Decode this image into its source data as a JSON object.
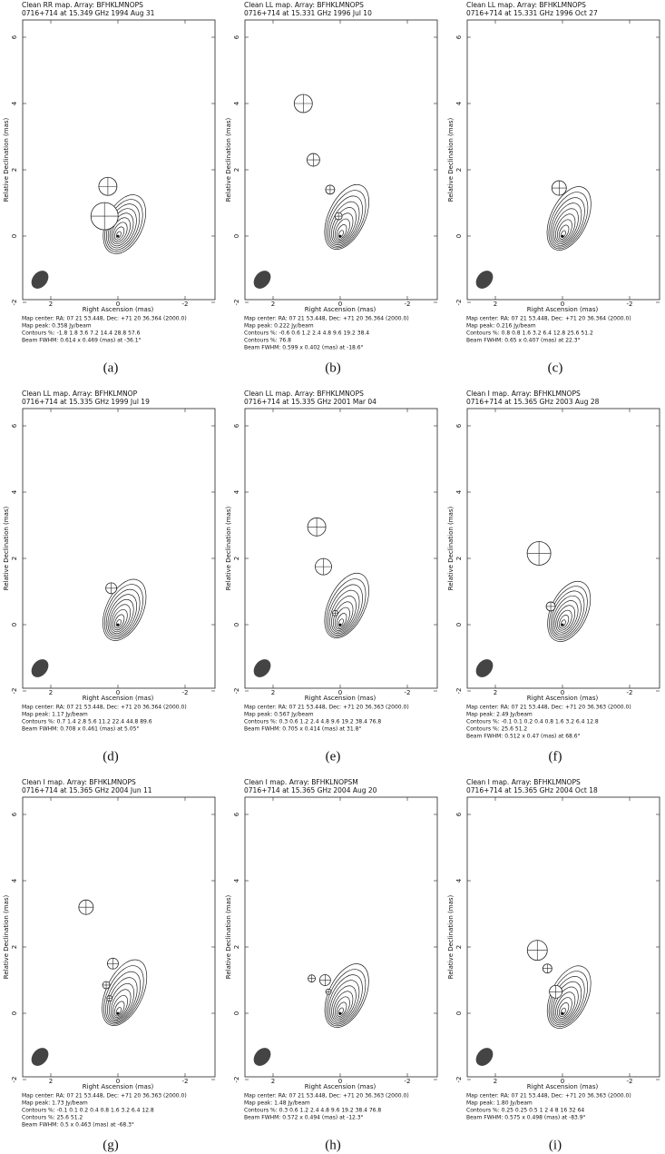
{
  "axes": {
    "x_label": "Right Ascension  (mas)",
    "y_label": "Relative Declination  (mas)",
    "x_ticks": [
      "2",
      "0",
      "-2"
    ],
    "y_ticks": [
      "-2",
      "0",
      "2",
      "4",
      "6"
    ]
  },
  "panels": [
    {
      "header": "Clean RR map.  Array:  BFHKLMNOPS",
      "subheader": "0716+714  at  15.349 GHz 1994 Aug 31",
      "caption": "(a)",
      "footer": [
        "Map center:  RA: 07 21 53.448,   Dec: +71 20 36.364 (2000.0)",
        "Map peak: 0.358 Jy/beam",
        "Contours %: -1.8 1.8 3.6 7.2 14.4 28.8 57.6",
        "Beam FWHM: 0.614 x 0.469 (mas) at -36.1°"
      ]
    },
    {
      "header": "Clean LL map.  Array:  BFHKLMNOPS",
      "subheader": "0716+714  at  15.331 GHz 1996 Jul 10",
      "caption": "(b)",
      "footer": [
        "Map center:  RA: 07 21 53.448,   Dec: +71 20 36.364 (2000.0)",
        "Map peak: 0.222 Jy/beam",
        "Contours %: -0.6 0.6 1.2 2.4 4.8 9.6 19.2 38.4",
        "Contours %: 76.8",
        "Beam FWHM: 0.599 x 0.402 (mas) at -18.6°"
      ]
    },
    {
      "header": "Clean LL map.  Array:  BFHKLMNOPS",
      "subheader": "0716+714  at  15.331 GHz 1996 Oct 27",
      "caption": "(c)",
      "footer": [
        "Map center:  RA: 07 21 53.448,   Dec: +71 20 36.364 (2000.0)",
        "Map peak: 0.216 Jy/beam",
        "Contours %: 0.8 0.8 1.6 3.2 6.4 12.8 25.6 51.2",
        "Beam FWHM: 0.65 x 0.407 (mas) at 22.3°"
      ]
    },
    {
      "header": "Clean LL map.  Array:  BFHKLMNOP",
      "subheader": "0716+714  at  15.335 GHz 1999 Jul 19",
      "caption": "(d)",
      "footer": [
        "Map center:  RA: 07 21 53.448,   Dec: +71 20 36.364 (2000.0)",
        "Map peak: 1.17 Jy/beam",
        "Contours %: 0.7 1.4 2.8 5.6 11.2 22.4 44.8 89.6",
        "Beam FWHM: 0.708 x 0.461 (mas) at 5.05°"
      ]
    },
    {
      "header": "Clean LL map.  Array:  BFHKLMNOPS",
      "subheader": "0716+714  at  15.335 GHz 2001 Mar 04",
      "caption": "(e)",
      "footer": [
        "Map center:  RA: 07 21 53.448,   Dec: +71 20 36.363 (2000.0)",
        "Map peak: 0.567 Jy/beam",
        "Contours %: 0.3 0.6 1.2 2.4 4.8 9.6 19.2 38.4 76.8",
        "Beam FWHM: 0.705 x 0.414 (mas) at 31.8°"
      ]
    },
    {
      "header": "Clean I map.  Array:  BFHKLMNOPS",
      "subheader": "0716+714  at  15.365 GHz 2003 Aug 28",
      "caption": "(f)",
      "footer": [
        "Map center:  RA: 07 21 53.448,   Dec: +71 20 36.363 (2000.0)",
        "Map peak: 2.49 Jy/beam",
        "Contours %: -0.1 0.1 0.2 0.4 0.8 1.6 3.2 6.4 12.8",
        "Contours %: 25.6 51.2",
        "Beam FWHM: 0.512 x 0.47 (mas) at 68.6°"
      ]
    },
    {
      "header": "Clean I map.  Array:  BFHKLMNOPS",
      "subheader": "0716+714  at  15.365 GHz 2004 Jun 11",
      "caption": "(g)",
      "footer": [
        "Map center:  RA: 07 21 53.448,   Dec: +71 20 36.363 (2000.0)",
        "Map peak: 1.73 Jy/beam",
        "Contours %: -0.1 0.1 0.2 0.4 0.8 1.6 3.2 6.4 12.8",
        "Contours %: 25.6 51.2",
        "Beam FWHM: 0.5 x 0.463 (mas) at -68.3°"
      ]
    },
    {
      "header": "Clean I map.  Array:  BFHKLNOPSM",
      "subheader": "0716+714  at  15.365 GHz 2004 Aug 20",
      "caption": "(h)",
      "footer": [
        "Map center:  RA: 07 21 53.448,   Dec: +71 20 36.363 (2000.0)",
        "Map peak: 1.48 Jy/beam",
        "Contours %: 0.3 0.6 1.2 2.4 4.8 9.6 19.2 38.4 76.8",
        "Beam FWHM: 0.572 x 0.494 (mas) at -12.3°"
      ]
    },
    {
      "header": "Clean I map.  Array:  BFHKLMNOPS",
      "subheader": "0716+714  at  15.365 GHz 2004 Oct 18",
      "caption": "(i)",
      "footer": [
        "Map center:  RA: 07 21 53.448,   Dec: +71 20 36.363 (2000.0)",
        "Map peak: 1.80 Jy/beam",
        "Contours %: 0.25 0.25 0.5 1 2 4 8 16 32 64",
        "Beam FWHM: 0.575 x 0.498 (mas) at -83.9°"
      ]
    }
  ]
}
